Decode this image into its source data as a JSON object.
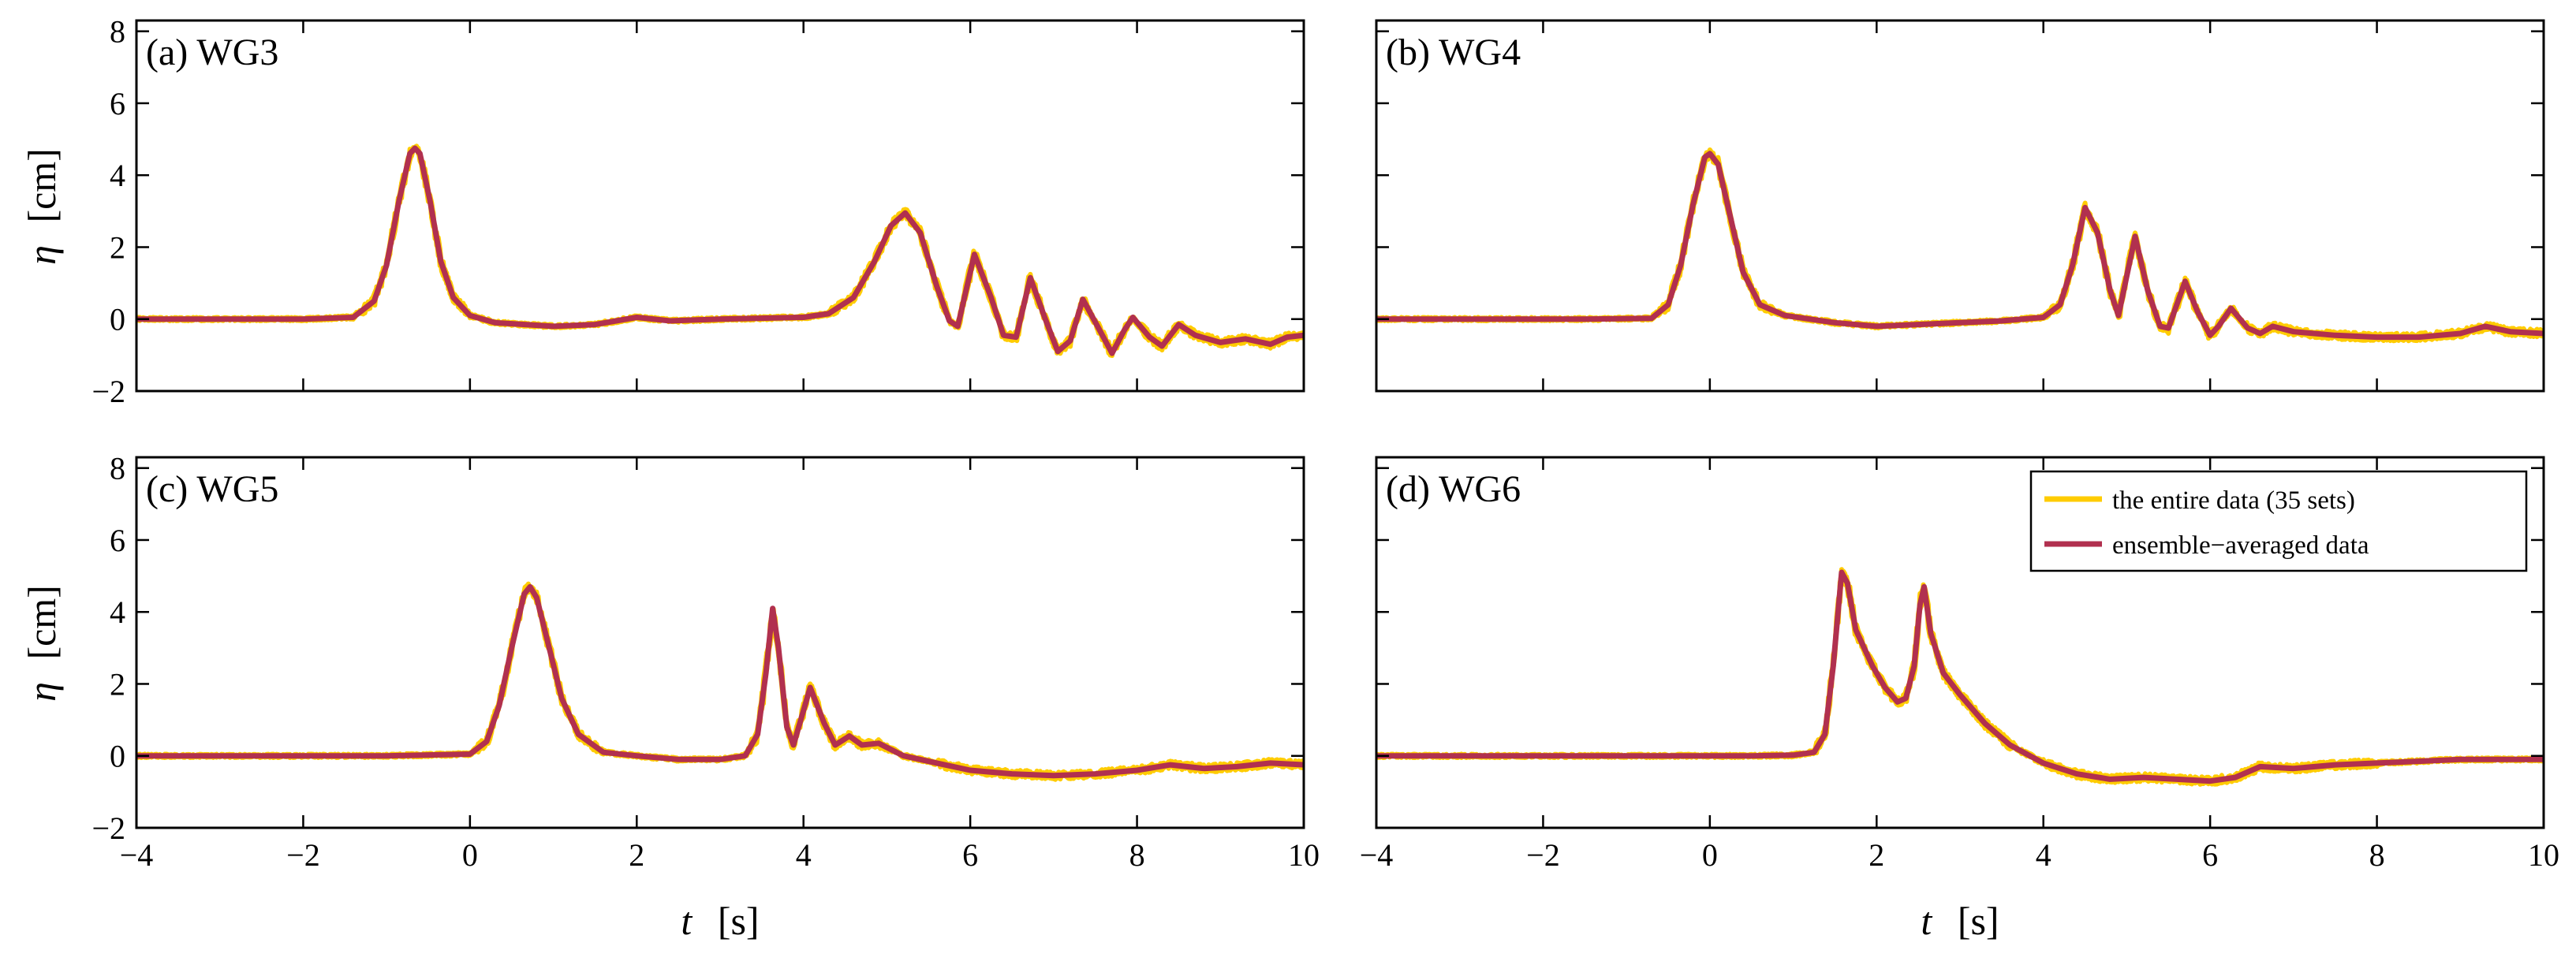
{
  "colors": {
    "entire": "#FFCC00",
    "ensemble": "#B1304F",
    "axis": "#000000"
  },
  "chart_data": {
    "type": "line",
    "x_var": "t",
    "x_unit": "[s]",
    "y_var": "η",
    "y_unit": "[cm]",
    "xlim": [
      -4,
      10
    ],
    "ylim": [
      -2,
      8.3
    ],
    "x_ticks": [
      "−4",
      "−2",
      "0",
      "2",
      "4",
      "6",
      "8",
      "10"
    ],
    "y_ticks": [
      "−2",
      "0",
      "2",
      "4",
      "6",
      "8"
    ],
    "legend": {
      "position": "top-right",
      "entries": [
        {
          "key": "entire",
          "label": "the entire data (35 sets)"
        },
        {
          "key": "ensemble",
          "label": "ensemble−averaged data"
        }
      ]
    },
    "panels": [
      {
        "id": "a",
        "title": "(a) WG3",
        "series": [
          {
            "name": "ensemble−averaged data",
            "points": [
              [
                -4,
                0
              ],
              [
                -2,
                0
              ],
              [
                -1.4,
                0.05
              ],
              [
                -1.15,
                0.5
              ],
              [
                -1.0,
                1.5
              ],
              [
                -0.85,
                3.3
              ],
              [
                -0.72,
                4.6
              ],
              [
                -0.66,
                4.75
              ],
              [
                -0.6,
                4.6
              ],
              [
                -0.48,
                3.3
              ],
              [
                -0.35,
                1.6
              ],
              [
                -0.2,
                0.6
              ],
              [
                0,
                0.1
              ],
              [
                0.3,
                -0.1
              ],
              [
                1.0,
                -0.2
              ],
              [
                1.5,
                -0.15
              ],
              [
                2.0,
                0.05
              ],
              [
                2.4,
                -0.05
              ],
              [
                3.0,
                0.0
              ],
              [
                4.0,
                0.05
              ],
              [
                4.3,
                0.15
              ],
              [
                4.6,
                0.6
              ],
              [
                4.85,
                1.6
              ],
              [
                5.05,
                2.6
              ],
              [
                5.22,
                2.95
              ],
              [
                5.4,
                2.4
              ],
              [
                5.6,
                0.9
              ],
              [
                5.75,
                -0.05
              ],
              [
                5.85,
                -0.2
              ],
              [
                6.05,
                1.8
              ],
              [
                6.25,
                0.6
              ],
              [
                6.4,
                -0.45
              ],
              [
                6.55,
                -0.5
              ],
              [
                6.72,
                1.15
              ],
              [
                6.9,
                0.0
              ],
              [
                7.05,
                -0.9
              ],
              [
                7.2,
                -0.6
              ],
              [
                7.35,
                0.55
              ],
              [
                7.55,
                -0.3
              ],
              [
                7.7,
                -0.95
              ],
              [
                7.85,
                -0.3
              ],
              [
                7.95,
                0.05
              ],
              [
                8.15,
                -0.5
              ],
              [
                8.3,
                -0.75
              ],
              [
                8.5,
                -0.15
              ],
              [
                8.7,
                -0.45
              ],
              [
                9.0,
                -0.65
              ],
              [
                9.3,
                -0.55
              ],
              [
                9.6,
                -0.7
              ],
              [
                9.8,
                -0.5
              ],
              [
                10,
                -0.45
              ]
            ]
          }
        ]
      },
      {
        "id": "b",
        "title": "(b) WG4",
        "series": [
          {
            "name": "ensemble−averaged data",
            "points": [
              [
                -4,
                0
              ],
              [
                -1.5,
                0
              ],
              [
                -0.7,
                0.02
              ],
              [
                -0.5,
                0.4
              ],
              [
                -0.35,
                1.5
              ],
              [
                -0.2,
                3.2
              ],
              [
                -0.06,
                4.5
              ],
              [
                0.0,
                4.6
              ],
              [
                0.1,
                4.3
              ],
              [
                0.25,
                2.8
              ],
              [
                0.4,
                1.3
              ],
              [
                0.6,
                0.4
              ],
              [
                0.9,
                0.1
              ],
              [
                1.5,
                -0.1
              ],
              [
                2.0,
                -0.2
              ],
              [
                2.5,
                -0.15
              ],
              [
                3.0,
                -0.1
              ],
              [
                3.5,
                -0.05
              ],
              [
                4.0,
                0.05
              ],
              [
                4.2,
                0.4
              ],
              [
                4.35,
                1.5
              ],
              [
                4.5,
                3.1
              ],
              [
                4.65,
                2.4
              ],
              [
                4.8,
                0.8
              ],
              [
                4.9,
                0.1
              ],
              [
                5.1,
                2.3
              ],
              [
                5.25,
                0.8
              ],
              [
                5.4,
                -0.2
              ],
              [
                5.5,
                -0.25
              ],
              [
                5.7,
                1.05
              ],
              [
                5.85,
                0.2
              ],
              [
                6.0,
                -0.45
              ],
              [
                6.1,
                -0.2
              ],
              [
                6.25,
                0.3
              ],
              [
                6.45,
                -0.25
              ],
              [
                6.6,
                -0.4
              ],
              [
                6.75,
                -0.2
              ],
              [
                7.0,
                -0.35
              ],
              [
                7.5,
                -0.45
              ],
              [
                8.0,
                -0.5
              ],
              [
                8.5,
                -0.5
              ],
              [
                9.0,
                -0.4
              ],
              [
                9.3,
                -0.2
              ],
              [
                9.6,
                -0.35
              ],
              [
                10,
                -0.4
              ]
            ]
          }
        ]
      },
      {
        "id": "c",
        "title": "(c) WG5",
        "series": [
          {
            "name": "ensemble−averaged data",
            "points": [
              [
                -4,
                0
              ],
              [
                -1,
                0
              ],
              [
                0.0,
                0.05
              ],
              [
                0.2,
                0.4
              ],
              [
                0.35,
                1.4
              ],
              [
                0.5,
                3.0
              ],
              [
                0.65,
                4.5
              ],
              [
                0.72,
                4.7
              ],
              [
                0.8,
                4.4
              ],
              [
                0.95,
                3.0
              ],
              [
                1.1,
                1.6
              ],
              [
                1.3,
                0.6
              ],
              [
                1.6,
                0.1
              ],
              [
                2.0,
                0.0
              ],
              [
                2.5,
                -0.1
              ],
              [
                3.0,
                -0.1
              ],
              [
                3.3,
                0.0
              ],
              [
                3.45,
                0.6
              ],
              [
                3.55,
                2.3
              ],
              [
                3.63,
                4.1
              ],
              [
                3.7,
                3.0
              ],
              [
                3.8,
                0.8
              ],
              [
                3.88,
                0.3
              ],
              [
                4.08,
                1.9
              ],
              [
                4.25,
                0.9
              ],
              [
                4.38,
                0.3
              ],
              [
                4.55,
                0.55
              ],
              [
                4.7,
                0.3
              ],
              [
                4.9,
                0.35
              ],
              [
                5.2,
                0.0
              ],
              [
                5.6,
                -0.2
              ],
              [
                6.0,
                -0.4
              ],
              [
                6.5,
                -0.5
              ],
              [
                7.0,
                -0.55
              ],
              [
                7.5,
                -0.5
              ],
              [
                8.0,
                -0.4
              ],
              [
                8.4,
                -0.25
              ],
              [
                8.8,
                -0.35
              ],
              [
                9.2,
                -0.3
              ],
              [
                9.6,
                -0.2
              ],
              [
                10,
                -0.25
              ]
            ]
          }
        ]
      },
      {
        "id": "d",
        "title": "(d) WG6",
        "series": [
          {
            "name": "ensemble−averaged data",
            "points": [
              [
                -4,
                0
              ],
              [
                -1,
                0
              ],
              [
                0.5,
                0
              ],
              [
                1.0,
                0.02
              ],
              [
                1.25,
                0.1
              ],
              [
                1.38,
                0.6
              ],
              [
                1.48,
                2.5
              ],
              [
                1.58,
                5.1
              ],
              [
                1.65,
                4.8
              ],
              [
                1.75,
                3.5
              ],
              [
                1.95,
                2.5
              ],
              [
                2.1,
                1.9
              ],
              [
                2.25,
                1.5
              ],
              [
                2.35,
                1.6
              ],
              [
                2.45,
                2.5
              ],
              [
                2.52,
                4.2
              ],
              [
                2.57,
                4.7
              ],
              [
                2.65,
                3.4
              ],
              [
                2.8,
                2.3
              ],
              [
                3.0,
                1.7
              ],
              [
                3.3,
                0.9
              ],
              [
                3.6,
                0.3
              ],
              [
                4.0,
                -0.2
              ],
              [
                4.4,
                -0.5
              ],
              [
                4.8,
                -0.65
              ],
              [
                5.2,
                -0.6
              ],
              [
                5.6,
                -0.65
              ],
              [
                6.0,
                -0.7
              ],
              [
                6.3,
                -0.6
              ],
              [
                6.6,
                -0.3
              ],
              [
                7.0,
                -0.35
              ],
              [
                7.5,
                -0.25
              ],
              [
                8.0,
                -0.2
              ],
              [
                8.5,
                -0.15
              ],
              [
                9.0,
                -0.1
              ],
              [
                9.5,
                -0.1
              ],
              [
                10,
                -0.1
              ]
            ]
          }
        ]
      }
    ]
  }
}
